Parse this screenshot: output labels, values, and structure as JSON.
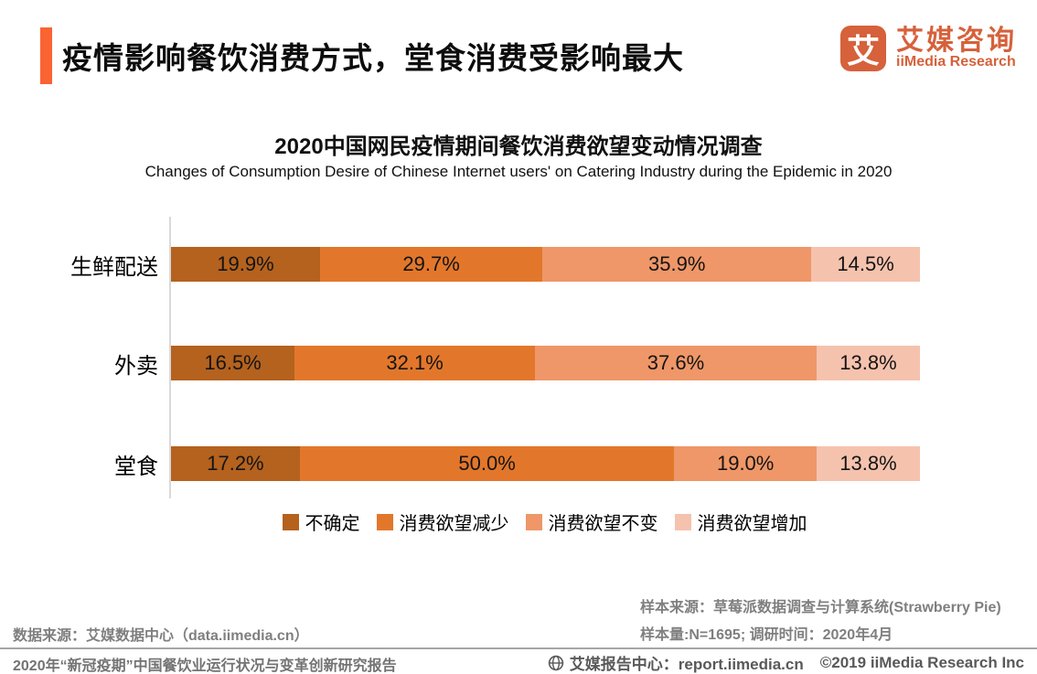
{
  "header": {
    "title": "疫情影响餐饮消费方式，堂食消费受影响最大",
    "logo": {
      "mark_glyph": "艾",
      "name_cn": "艾媒咨询",
      "name_en": "iiMedia Research",
      "brand_color": "#D6613B",
      "accent_color": "#FA6332"
    }
  },
  "chart": {
    "title": "2020中国网民疫情期间餐饮消费欲望变动情况调查",
    "subtitle": "Changes of Consumption Desire of Chinese Internet users' on Catering Industry during the Epidemic in 2020"
  },
  "chart_data": {
    "type": "bar",
    "orientation": "horizontal",
    "stacked": true,
    "title": "2020中国网民疫情期间餐饮消费欲望变动情况调查",
    "subtitle": "Changes of Consumption Desire of Chinese Internet users' on Catering Industry during the Epidemic in 2020",
    "categories": [
      "生鲜配送",
      "外卖",
      "堂食"
    ],
    "series": [
      {
        "name": "不确定",
        "color": "#B4621E",
        "values": [
          19.9,
          16.5,
          17.2
        ]
      },
      {
        "name": "消费欲望减少",
        "color": "#E2772B",
        "values": [
          29.7,
          32.1,
          50.0
        ]
      },
      {
        "name": "消费欲望不变",
        "color": "#EF9768",
        "values": [
          35.9,
          37.6,
          19.0
        ]
      },
      {
        "name": "消费欲望增加",
        "color": "#F5C2AD",
        "values": [
          14.5,
          13.8,
          13.8
        ]
      }
    ],
    "value_suffix": "%",
    "xlim": [
      0,
      100
    ],
    "grid": false,
    "legend_position": "bottom",
    "value_labels": "inside-center"
  },
  "footnotes": {
    "sample_source": "样本来源：草莓派数据调查与计算系统(Strawberry Pie)",
    "sample_size": "样本量:N=1695; 调研时间：2020年4月",
    "data_source": "数据来源：艾媒数据中心（data.iimedia.cn）"
  },
  "footer": {
    "report_title": "2020年“新冠疫期”中国餐饮业运行状况与变革创新研究报告",
    "report_center": "艾媒报告中心：report.iimedia.cn",
    "copyright": "©2019  iiMedia Research Inc"
  }
}
